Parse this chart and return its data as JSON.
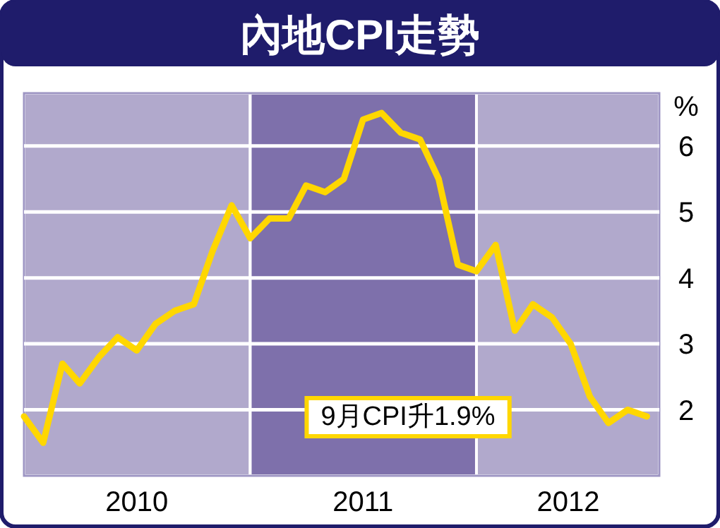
{
  "chart_data": {
    "type": "line",
    "title": "內地CPI走勢",
    "ylabel": "%",
    "x": [
      "2009-12",
      "2010-01",
      "2010-02",
      "2010-03",
      "2010-04",
      "2010-05",
      "2010-06",
      "2010-07",
      "2010-08",
      "2010-09",
      "2010-10",
      "2010-11",
      "2010-12",
      "2011-01",
      "2011-02",
      "2011-03",
      "2011-04",
      "2011-05",
      "2011-06",
      "2011-07",
      "2011-08",
      "2011-09",
      "2011-10",
      "2011-11",
      "2011-12",
      "2012-01",
      "2012-02",
      "2012-03",
      "2012-04",
      "2012-05",
      "2012-06",
      "2012-07",
      "2012-08",
      "2012-09"
    ],
    "series": [
      {
        "color": "#ffd700",
        "values": [
          1.9,
          1.5,
          2.7,
          2.4,
          2.8,
          3.1,
          2.9,
          3.3,
          3.5,
          3.6,
          4.4,
          5.1,
          4.6,
          4.9,
          4.9,
          5.4,
          5.3,
          5.5,
          6.4,
          6.5,
          6.2,
          6.1,
          5.5,
          4.2,
          4.1,
          4.5,
          3.2,
          3.6,
          3.4,
          3.0,
          2.2,
          1.8,
          2.0,
          1.9
        ]
      }
    ],
    "xlim": [
      "2009-12",
      "2012-09-21"
    ],
    "ylim": [
      1.0,
      6.8
    ],
    "yticks": [
      2,
      3,
      4,
      5,
      6
    ],
    "xticks": [
      {
        "value": "2010-06-01",
        "label": "2010"
      },
      {
        "value": "2011-06-01",
        "label": "2011"
      },
      {
        "value": "2012-04-27",
        "label": "2012"
      }
    ],
    "bands": [
      {
        "axis": "x",
        "from": "2009-12",
        "to": "2010-12",
        "color": "#b1a9cc"
      },
      {
        "axis": "x",
        "from": "2010-12",
        "to": "2011-12",
        "color": "#7e70ab"
      },
      {
        "axis": "x",
        "from": "2011-12",
        "to": "2012-09-21",
        "color": "#b1a9cc"
      }
    ],
    "annotations": [
      "9月CPI升1.9%"
    ],
    "grid": "y"
  }
}
